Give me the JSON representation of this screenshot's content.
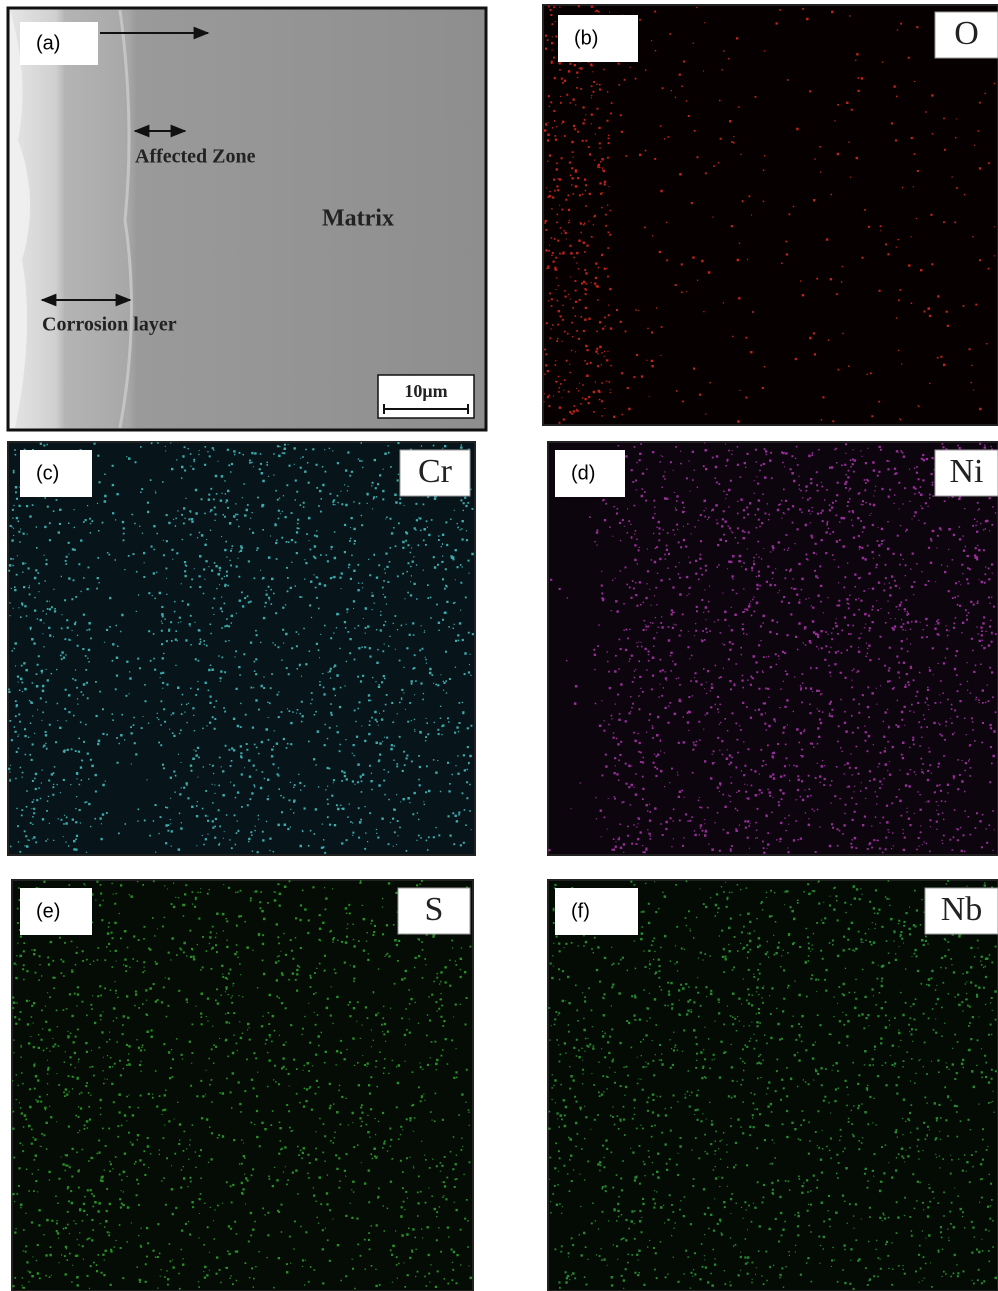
{
  "panels": [
    {
      "label": "(a)",
      "annotations": {
        "affected_zone": "Affected Zone",
        "matrix": "Matrix",
        "corrosion_layer": "Corrosion layer"
      },
      "scale_bar": "10μm"
    },
    {
      "label": "(b)",
      "element": "O"
    },
    {
      "label": "(c)",
      "element": "Cr"
    },
    {
      "label": "(d)",
      "element": "Ni"
    },
    {
      "label": "(e)",
      "element": "S"
    },
    {
      "label": "(f)",
      "element": "Nb"
    }
  ]
}
